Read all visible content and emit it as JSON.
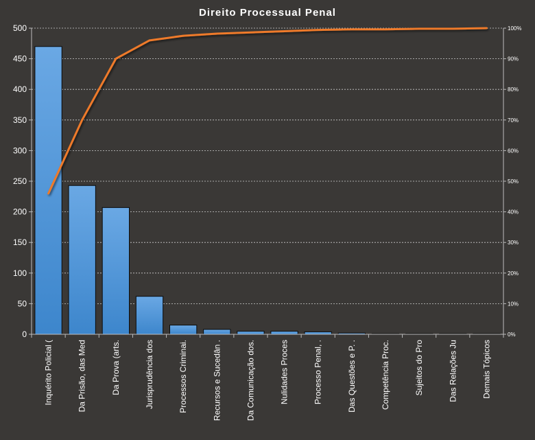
{
  "chart_data": {
    "type": "bar",
    "title": "Direito Processual Penal",
    "categories": [
      "Inquérito Policial (",
      "Da Prisão, das Med",
      "Da Prova (arts.",
      "Jurisprudência dos",
      "Processos Criminai.",
      "Recursos e Sucedân .",
      "Da Comunicação dos.",
      "Nulidades Proces",
      "Processo Penal, .",
      "Das Questões e P. .",
      "Competência Proc.",
      "Sujeitos do Pro",
      "Das Relações Ju",
      "Demais Tópicos"
    ],
    "series": [
      {
        "type": "bar",
        "axis": "left",
        "color": "#4f96dc",
        "values": [
          470,
          243,
          207,
          62,
          15,
          8,
          5,
          5,
          4,
          2,
          1,
          1,
          1,
          1
        ]
      },
      {
        "type": "line",
        "axis": "right",
        "color": "#ee7a2a",
        "values": [
          46,
          70,
          90,
          96,
          97.5,
          98.2,
          98.6,
          99.0,
          99.4,
          99.6,
          99.6,
          99.8,
          99.8,
          100
        ]
      }
    ],
    "ylim": [
      0,
      500
    ],
    "yticks": [
      0,
      50,
      100,
      150,
      200,
      250,
      300,
      350,
      400,
      450,
      500
    ],
    "y2lim": [
      0,
      100
    ],
    "y2ticks": [
      "0%",
      "10%",
      "20%",
      "30%",
      "40%",
      "50%",
      "60%",
      "70%",
      "80%",
      "90%",
      "100%"
    ],
    "grid": true,
    "legend": "none"
  }
}
